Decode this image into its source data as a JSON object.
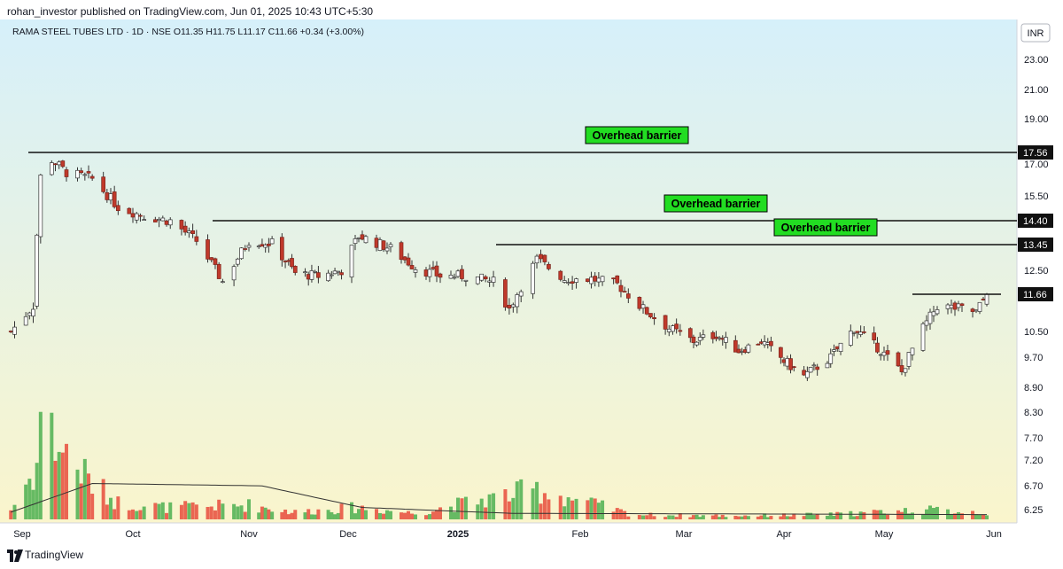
{
  "header": {
    "published": "rohan_investor published on TradingView.com, Jun 01, 2025 10:43 UTC+5:30"
  },
  "legend": {
    "symbol_line": "RAMA STEEL TUBES LTD · 1D · NSE  O11.35  H11.75  L11.17  C11.66  +0.34 (+3.00%)"
  },
  "footer": {
    "brand": "TradingView",
    "logo_icon": "tradingview-logo-icon"
  },
  "colors": {
    "up": "#ffffff",
    "up_border": "#333333",
    "down": "#c0392b",
    "vol_up": "#4caf50",
    "vol_down": "#e74c3c",
    "label_bg": "#22dd22",
    "bg_top": "#d6f0fa",
    "bg_bottom": "#faf5cc"
  },
  "chart_data": {
    "type": "candlestick",
    "currency": "INR",
    "y_ticks": [
      "23.00",
      "21.00",
      "19.00",
      "17.00",
      "15.50",
      "12.50",
      "10.50",
      "9.70",
      "8.90",
      "8.30",
      "7.70",
      "7.20",
      "6.70",
      "6.25"
    ],
    "x_ticks": [
      "Sep",
      "Oct",
      "Nov",
      "Dec",
      "2025",
      "Feb",
      "Mar",
      "Apr",
      "May",
      "Jun"
    ],
    "price_markers": [
      "17.56",
      "14.40",
      "13.45",
      "11.66"
    ],
    "barriers": [
      {
        "label": "Overhead barrier",
        "price": 17.56,
        "from": "Sep",
        "to": "Jun"
      },
      {
        "label": "Overhead barrier",
        "price": 14.4,
        "from": "Nov",
        "to": "Jun"
      },
      {
        "label": "Overhead barrier",
        "price": 13.45,
        "from": "Jan",
        "to": "Jun"
      }
    ],
    "resistance_line": {
      "price": 11.66,
      "from": "May",
      "to": "Jun"
    },
    "ohlc_waypoints": [
      {
        "date": "2024-08-29",
        "close": 10.5
      },
      {
        "date": "2024-09-04",
        "close": 11.3
      },
      {
        "date": "2024-09-06",
        "close": 16.4
      },
      {
        "date": "2024-09-09",
        "close": 17.2
      },
      {
        "date": "2024-09-13",
        "close": 16.6
      },
      {
        "date": "2024-09-20",
        "close": 16.3
      },
      {
        "date": "2024-09-27",
        "close": 15.0
      },
      {
        "date": "2024-10-04",
        "close": 14.6
      },
      {
        "date": "2024-10-11",
        "close": 14.4
      },
      {
        "date": "2024-10-18",
        "close": 13.6
      },
      {
        "date": "2024-10-25",
        "close": 12.1
      },
      {
        "date": "2024-11-01",
        "close": 13.6
      },
      {
        "date": "2024-11-08",
        "close": 13.5
      },
      {
        "date": "2024-11-15",
        "close": 12.4
      },
      {
        "date": "2024-11-22",
        "close": 12.3
      },
      {
        "date": "2024-11-29",
        "close": 12.5
      },
      {
        "date": "2024-12-04",
        "close": 13.8
      },
      {
        "date": "2024-12-13",
        "close": 13.3
      },
      {
        "date": "2024-12-20",
        "close": 12.6
      },
      {
        "date": "2024-12-27",
        "close": 12.3
      },
      {
        "date": "2025-01-03",
        "close": 12.3
      },
      {
        "date": "2025-01-10",
        "close": 12.1
      },
      {
        "date": "2025-01-14",
        "close": 11.2
      },
      {
        "date": "2025-01-21",
        "close": 12.9
      },
      {
        "date": "2025-01-28",
        "close": 12.2
      },
      {
        "date": "2025-02-04",
        "close": 12.2
      },
      {
        "date": "2025-02-11",
        "close": 12.0
      },
      {
        "date": "2025-02-18",
        "close": 11.2
      },
      {
        "date": "2025-02-25",
        "close": 10.6
      },
      {
        "date": "2025-03-04",
        "close": 10.2
      },
      {
        "date": "2025-03-11",
        "close": 10.4
      },
      {
        "date": "2025-03-18",
        "close": 9.9
      },
      {
        "date": "2025-03-25",
        "close": 10.2
      },
      {
        "date": "2025-04-01",
        "close": 9.6
      },
      {
        "date": "2025-04-07",
        "close": 9.2
      },
      {
        "date": "2025-04-15",
        "close": 9.7
      },
      {
        "date": "2025-04-22",
        "close": 10.6
      },
      {
        "date": "2025-04-29",
        "close": 10.0
      },
      {
        "date": "2025-05-06",
        "close": 9.3
      },
      {
        "date": "2025-05-12",
        "close": 10.6
      },
      {
        "date": "2025-05-16",
        "close": 11.3
      },
      {
        "date": "2025-05-23",
        "close": 11.2
      },
      {
        "date": "2025-05-27",
        "close": 11.1
      },
      {
        "date": "2025-05-30",
        "close": 11.66
      }
    ],
    "volume_profile": [
      {
        "date": "2024-08-29",
        "rel": 0.08
      },
      {
        "date": "2024-09-05",
        "rel": 0.45
      },
      {
        "date": "2024-09-06",
        "rel": 0.95
      },
      {
        "date": "2024-09-09",
        "rel": 0.7
      },
      {
        "date": "2024-09-13",
        "rel": 0.55
      },
      {
        "date": "2024-09-20",
        "rel": 0.3
      },
      {
        "date": "2024-09-27",
        "rel": 0.14
      },
      {
        "date": "2024-10-10",
        "rel": 0.1
      },
      {
        "date": "2024-11-01",
        "rel": 0.12
      },
      {
        "date": "2024-11-15",
        "rel": 0.06
      },
      {
        "date": "2024-12-04",
        "rel": 0.1
      },
      {
        "date": "2024-12-20",
        "rel": 0.05
      },
      {
        "date": "2025-01-21",
        "rel": 0.25
      },
      {
        "date": "2025-02-15",
        "rel": 0.04
      },
      {
        "date": "2025-03-15",
        "rel": 0.03
      },
      {
        "date": "2025-04-15",
        "rel": 0.04
      },
      {
        "date": "2025-05-12",
        "rel": 0.08
      },
      {
        "date": "2025-05-30",
        "rel": 0.06
      }
    ],
    "volume_ma_profile": [
      {
        "date": "2024-08-29",
        "rel": 0.06
      },
      {
        "date": "2024-09-20",
        "rel": 0.3
      },
      {
        "date": "2024-11-05",
        "rel": 0.28
      },
      {
        "date": "2024-12-05",
        "rel": 0.1
      },
      {
        "date": "2025-01-15",
        "rel": 0.05
      },
      {
        "date": "2025-05-30",
        "rel": 0.04
      }
    ]
  }
}
